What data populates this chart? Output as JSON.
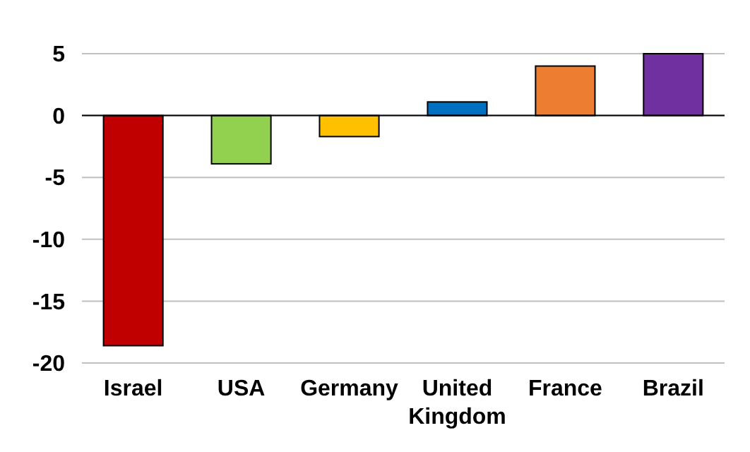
{
  "chart_data": {
    "type": "bar",
    "categories": [
      "Israel",
      "USA",
      "Germany",
      "United Kingdom",
      "France",
      "Brazil"
    ],
    "values": [
      -18.6,
      -3.9,
      -1.7,
      1.1,
      4.0,
      5.0
    ],
    "colors": [
      "#c00000",
      "#92d050",
      "#ffc000",
      "#0070c0",
      "#ed7d31",
      "#7030a0"
    ],
    "ylim": [
      -20,
      5
    ],
    "yticks": [
      -20,
      -15,
      -10,
      -5,
      0,
      5
    ],
    "grid": "y"
  }
}
